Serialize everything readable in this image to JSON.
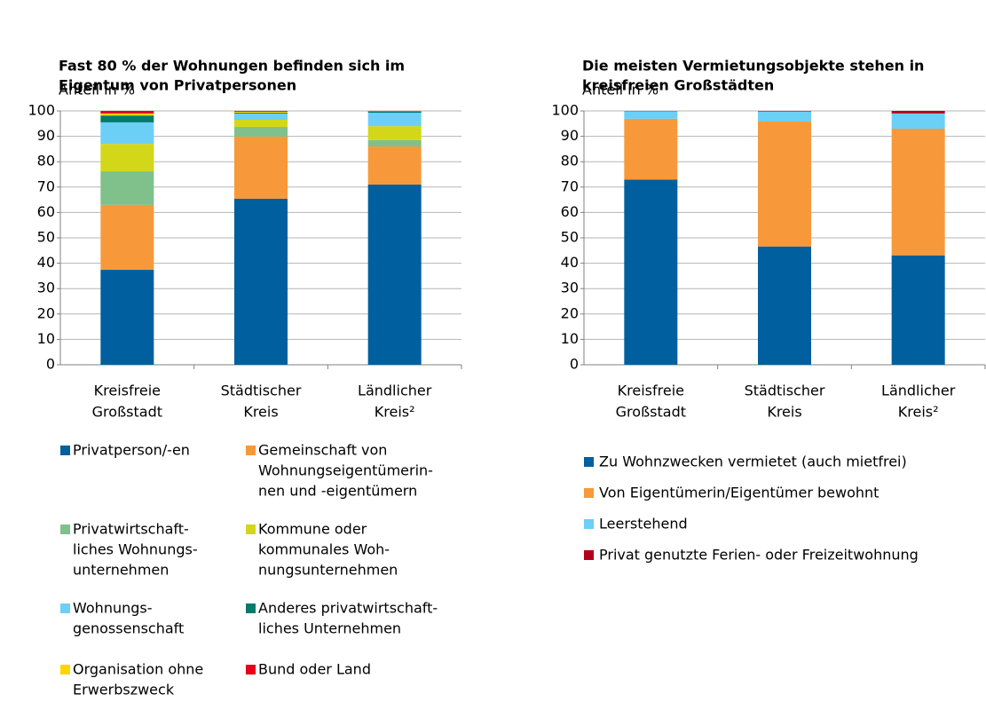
{
  "chart_data": [
    {
      "type": "stacked_bar",
      "title": [
        "Fast 80 % der Wohnungen befinden sich im",
        "Eigentum von Privatpersonen"
      ],
      "y_label": "Anteil in %",
      "categories": [
        [
          "Kreisfreie",
          "Großstadt"
        ],
        [
          "Städtischer",
          "Kreis"
        ],
        [
          "Ländlicher",
          "Kreis²"
        ]
      ],
      "ylim": [
        0,
        100
      ],
      "yticks": [
        0,
        10,
        20,
        30,
        40,
        50,
        60,
        70,
        80,
        90,
        100
      ],
      "grid": true,
      "legend_layout": "two-column",
      "series": [
        {
          "name": [
            "Privatperson/-en"
          ],
          "color": "#005f9e",
          "values": [
            37.4,
            65.4,
            71.0
          ]
        },
        {
          "name": [
            "Gemeinschaft von",
            "Wohnungseigentümerin-",
            "nen und -eigentümern"
          ],
          "color": "#f7993a",
          "values": [
            25.6,
            24.5,
            15.0
          ]
        },
        {
          "name": [
            "Privatwirtschaft-",
            "liches Wohnungs-",
            "unternehmen"
          ],
          "color": "#80c08a",
          "values": [
            13.2,
            3.8,
            2.5
          ]
        },
        {
          "name": [
            "Kommune oder",
            "kommunales Woh-",
            "nungsunternehmen"
          ],
          "color": "#d4d61a",
          "values": [
            10.8,
            2.8,
            5.5
          ]
        },
        {
          "name": [
            "Wohnungs-",
            "genossenschaft"
          ],
          "color": "#6ccff6",
          "values": [
            8.5,
            2.5,
            5.3
          ]
        },
        {
          "name": [
            "Anderes privatwirtschaft-",
            "liches Unternehmen"
          ],
          "color": "#007a6c",
          "values": [
            2.7,
            0.3,
            0.4
          ]
        },
        {
          "name": [
            "Organisation ohne",
            "Erwerbszweck"
          ],
          "color": "#ffd400",
          "values": [
            0.8,
            0.4,
            0.1
          ]
        },
        {
          "name": [
            "Bund oder Land"
          ],
          "color": "#e2001a",
          "values": [
            1.0,
            0.3,
            0.2
          ]
        }
      ]
    },
    {
      "type": "stacked_bar",
      "title": [
        "Die meisten Vermietungsobjekte stehen in",
        "kreisfreien Großstädten"
      ],
      "y_label": "Anteil in %",
      "categories": [
        [
          "Kreisfreie",
          "Großstadt"
        ],
        [
          "Städtischer",
          "Kreis"
        ],
        [
          "Ländlicher",
          "Kreis²"
        ]
      ],
      "ylim": [
        0,
        100
      ],
      "yticks": [
        0,
        10,
        20,
        30,
        40,
        50,
        60,
        70,
        80,
        90,
        100
      ],
      "grid": true,
      "legend_layout": "one-column",
      "series": [
        {
          "name": [
            "Zu Wohnzwecken vermietet (auch mietfrei)"
          ],
          "color": "#005f9e",
          "values": [
            72.9,
            46.6,
            43.1
          ]
        },
        {
          "name": [
            "Von Eigentümerin/Eigentümer bewohnt"
          ],
          "color": "#f7993a",
          "values": [
            24.0,
            49.2,
            49.9
          ]
        },
        {
          "name": [
            "Leerstehend"
          ],
          "color": "#6ccff6",
          "values": [
            3.0,
            4.0,
            6.0
          ]
        },
        {
          "name": [
            "Privat genutzte Ferien- oder Freizeitwohnung"
          ],
          "color": "#b2001a",
          "values": [
            0.1,
            0.2,
            1.0
          ]
        }
      ]
    }
  ]
}
